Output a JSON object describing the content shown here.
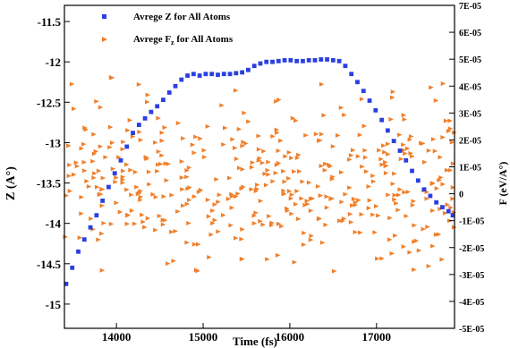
{
  "chart_data": {
    "type": "scatter",
    "xlabel": "Time (fs)",
    "ylabel_left": "Z (A°)",
    "ylabel_right": "F (eV/A°)",
    "xlim": [
      13400,
      17900
    ],
    "ylim_left": [
      -15.3,
      -11.3
    ],
    "ylim_right": [
      -5e-05,
      7e-05
    ],
    "x_ticks": [
      {
        "v": 14000,
        "label": "14000"
      },
      {
        "v": 15000,
        "label": "15000"
      },
      {
        "v": 16000,
        "label": "16000"
      },
      {
        "v": 17000,
        "label": "17000"
      }
    ],
    "y_left_ticks": [
      {
        "v": -11.5,
        "label": "-11.5"
      },
      {
        "v": -12,
        "label": "-12"
      },
      {
        "v": -12.5,
        "label": "-12.5"
      },
      {
        "v": -13,
        "label": "-13"
      },
      {
        "v": -13.5,
        "label": "-13.5"
      },
      {
        "v": -14,
        "label": "-14"
      },
      {
        "v": -14.5,
        "label": "-14.5"
      },
      {
        "v": -15,
        "label": "-15"
      }
    ],
    "y_right_ticks": [
      {
        "v": 7e-05,
        "label": "7E-05"
      },
      {
        "v": 6e-05,
        "label": "6E-05"
      },
      {
        "v": 5e-05,
        "label": "5E-05"
      },
      {
        "v": 4e-05,
        "label": "4E-05"
      },
      {
        "v": 3e-05,
        "label": "3E-05"
      },
      {
        "v": 2e-05,
        "label": "2E-05"
      },
      {
        "v": 1e-05,
        "label": "1E-05"
      },
      {
        "v": 0,
        "label": "0"
      },
      {
        "v": -1e-05,
        "label": "-1E-05"
      },
      {
        "v": -2e-05,
        "label": "-2E-05"
      },
      {
        "v": -3e-05,
        "label": "-3E-05"
      },
      {
        "v": -4e-05,
        "label": "-4E-05"
      },
      {
        "v": -5e-05,
        "label": "-5E-05"
      }
    ],
    "series": [
      {
        "name": "Avrege Z  for All Atoms",
        "axis": "left",
        "marker": "square",
        "color": "#2b3fe0",
        "x": [
          13420,
          13490,
          13560,
          13630,
          13700,
          13770,
          13840,
          13910,
          13980,
          14050,
          14120,
          14190,
          14260,
          14330,
          14400,
          14470,
          14540,
          14610,
          14680,
          14750,
          14820,
          14890,
          14960,
          15030,
          15100,
          15170,
          15240,
          15310,
          15380,
          15450,
          15520,
          15590,
          15660,
          15730,
          15800,
          15870,
          15940,
          16010,
          16080,
          16150,
          16220,
          16290,
          16360,
          16430,
          16500,
          16570,
          16640,
          16710,
          16780,
          16850,
          16920,
          16990,
          17060,
          17130,
          17200,
          17270,
          17340,
          17410,
          17480,
          17550,
          17620,
          17690,
          17760,
          17830,
          17880
        ],
        "y": [
          -14.75,
          -14.55,
          -14.35,
          -14.2,
          -14.05,
          -13.9,
          -13.72,
          -13.55,
          -13.38,
          -13.22,
          -13.05,
          -12.88,
          -12.78,
          -12.7,
          -12.62,
          -12.55,
          -12.47,
          -12.38,
          -12.3,
          -12.22,
          -12.17,
          -12.15,
          -12.17,
          -12.15,
          -12.15,
          -12.16,
          -12.15,
          -12.15,
          -12.14,
          -12.13,
          -12.1,
          -12.05,
          -12.02,
          -12.0,
          -12.0,
          -11.99,
          -11.98,
          -11.98,
          -11.99,
          -11.99,
          -11.98,
          -11.98,
          -11.97,
          -11.97,
          -11.98,
          -11.99,
          -12.05,
          -12.15,
          -12.25,
          -12.36,
          -12.48,
          -12.6,
          -12.72,
          -12.85,
          -12.98,
          -13.1,
          -13.22,
          -13.35,
          -13.47,
          -13.58,
          -13.66,
          -13.74,
          -13.8,
          -13.85,
          -13.9
        ]
      },
      {
        "name": "Avrege F",
        "name_subscript": "z",
        "name_suffix": "  for All Atoms",
        "axis": "right",
        "marker": "triangle",
        "color": "#f07f2a",
        "x": [
          13400,
          17900
        ],
        "y": [
          -4e-05,
          5e-05
        ],
        "scatter_count": 440
      }
    ],
    "legend": "top-left",
    "grid": false
  }
}
